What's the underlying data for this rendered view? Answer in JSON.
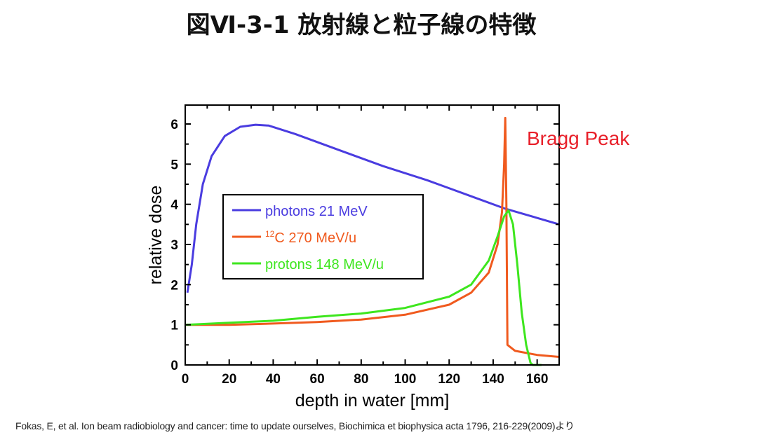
{
  "title": "図Ⅵ-3-1  放射線と粒子線の特徴",
  "citation": "Fokas, E, et al. Ion beam radiobiology and cancer: time to update ourselves, Biochimica et biophysica acta 1796, 216-229(2009)より",
  "chart_data": {
    "type": "line",
    "title": "",
    "xlabel": "depth in water [mm]",
    "ylabel": "relative dose",
    "xlim": [
      0,
      170
    ],
    "ylim": [
      0,
      6.5
    ],
    "xticks": [
      0,
      20,
      40,
      60,
      80,
      100,
      120,
      140,
      160
    ],
    "yticks": [
      0,
      1,
      2,
      3,
      4,
      5,
      6
    ],
    "grid": false,
    "legend_placement": "center-left",
    "annotation": {
      "text": "Bragg Peak",
      "color": "#e8202a"
    },
    "series": [
      {
        "name": "photons 21 MeV",
        "name_prefix_sup": "",
        "color": "#4a3ce0",
        "x": [
          1,
          3,
          5,
          8,
          12,
          18,
          25,
          32,
          38,
          50,
          70,
          90,
          110,
          130,
          145,
          170
        ],
        "y": [
          1.8,
          2.5,
          3.5,
          4.5,
          5.2,
          5.7,
          5.93,
          5.98,
          5.96,
          5.75,
          5.35,
          4.95,
          4.6,
          4.2,
          3.9,
          3.5
        ]
      },
      {
        "name": "C 270 MeV/u",
        "name_prefix_sup": "12",
        "color": "#f05a1e",
        "x": [
          0,
          20,
          40,
          60,
          80,
          100,
          120,
          130,
          138,
          142,
          144,
          145,
          145.5,
          146,
          146.5,
          150,
          160,
          170
        ],
        "y": [
          1,
          1.0,
          1.03,
          1.07,
          1.13,
          1.25,
          1.5,
          1.8,
          2.3,
          3.0,
          3.8,
          5.0,
          6.15,
          4.0,
          0.5,
          0.35,
          0.25,
          0.2
        ]
      },
      {
        "name": "protons 148 MeV/u",
        "name_prefix_sup": "",
        "color": "#3ee61e",
        "x": [
          0,
          20,
          40,
          60,
          80,
          100,
          120,
          130,
          138,
          142,
          145,
          147,
          149,
          151,
          153,
          155,
          157,
          158,
          162
        ],
        "y": [
          1,
          1.05,
          1.1,
          1.2,
          1.28,
          1.42,
          1.7,
          2.0,
          2.6,
          3.2,
          3.7,
          3.85,
          3.5,
          2.5,
          1.3,
          0.5,
          0.05,
          0,
          0
        ]
      }
    ]
  }
}
